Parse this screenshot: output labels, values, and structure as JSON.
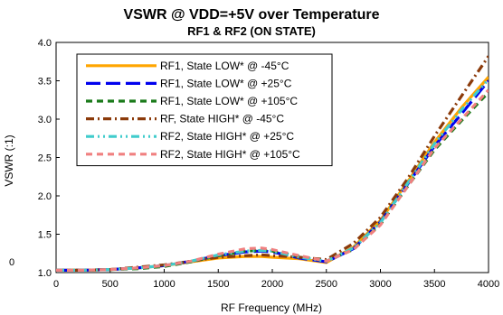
{
  "chart_data": {
    "type": "line",
    "title": "VSWR @ VDD=+5V over Temperature",
    "subtitle": "RF1 & RF2 (ON STATE)",
    "xlabel": "RF Frequency (MHz)",
    "ylabel": "VSWR (:1)",
    "xlim": [
      0,
      4000
    ],
    "ylim": [
      1.0,
      4.0
    ],
    "xticks": [
      "0",
      "500",
      "1000",
      "1500",
      "2000",
      "2500",
      "3000",
      "3500",
      "4000"
    ],
    "yticks": [
      "1.0",
      "1.5",
      "2.0",
      "2.5",
      "3.0",
      "3.5",
      "4.0"
    ],
    "stray_label": "0",
    "grid": false,
    "legend_placement": "top-left",
    "x": [
      0,
      250,
      500,
      750,
      1000,
      1250,
      1500,
      1750,
      1900,
      2000,
      2250,
      2500,
      2750,
      3000,
      3250,
      3500,
      3750,
      4000
    ],
    "series": [
      {
        "name": "RF1, State LOW* @ -45°C",
        "color": "#FFA500",
        "dash": "solid",
        "values": [
          1.03,
          1.03,
          1.04,
          1.06,
          1.09,
          1.14,
          1.19,
          1.21,
          1.21,
          1.2,
          1.18,
          1.13,
          1.33,
          1.68,
          2.18,
          2.7,
          3.15,
          3.55
        ]
      },
      {
        "name": "RF1, State LOW* @ +25°C",
        "color": "#0000EE",
        "dash": "long",
        "values": [
          1.03,
          1.03,
          1.04,
          1.06,
          1.09,
          1.15,
          1.22,
          1.27,
          1.28,
          1.27,
          1.19,
          1.14,
          1.31,
          1.66,
          2.15,
          2.65,
          3.07,
          3.5
        ]
      },
      {
        "name": "RF1, State LOW* @ +105°C",
        "color": "#1A7A1A",
        "dash": "dash",
        "values": [
          1.03,
          1.03,
          1.04,
          1.05,
          1.08,
          1.14,
          1.22,
          1.28,
          1.29,
          1.28,
          1.21,
          1.15,
          1.3,
          1.63,
          2.12,
          2.6,
          2.98,
          3.35
        ]
      },
      {
        "name": "RF, State HIGH* @ -45°C",
        "color": "#8B3A0A",
        "dash": "dashdot",
        "values": [
          1.03,
          1.03,
          1.04,
          1.07,
          1.1,
          1.15,
          1.2,
          1.22,
          1.23,
          1.22,
          1.2,
          1.17,
          1.38,
          1.72,
          2.22,
          2.78,
          3.3,
          3.82
        ]
      },
      {
        "name": "RF2, State HIGH* @ +25°C",
        "color": "#40CCCC",
        "dash": "dashdotdot",
        "values": [
          1.03,
          1.03,
          1.04,
          1.06,
          1.09,
          1.15,
          1.23,
          1.28,
          1.29,
          1.28,
          1.2,
          1.15,
          1.32,
          1.65,
          2.16,
          2.68,
          3.12,
          3.52
        ]
      },
      {
        "name": "RF2, State HIGH* @ +105°C",
        "color": "#F08080",
        "dash": "dash",
        "values": [
          1.03,
          1.03,
          1.04,
          1.06,
          1.09,
          1.15,
          1.24,
          1.31,
          1.32,
          1.3,
          1.22,
          1.15,
          1.3,
          1.62,
          2.12,
          2.62,
          3.0,
          3.38
        ]
      }
    ]
  }
}
